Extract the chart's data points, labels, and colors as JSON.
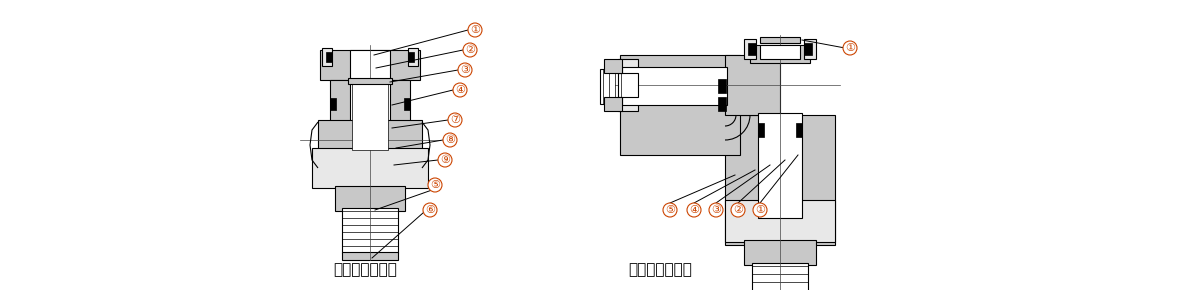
{
  "bg_color": "#ffffff",
  "line_color": "#000000",
  "gray_fill": "#c8c8c8",
  "light_gray": "#e8e8e8",
  "dark_gray": "#505050",
  "callout_color": "#cc4400",
  "label1": "ハーフユニオン",
  "label2": "エルボユニオン",
  "label_fontsize": 11,
  "callout_fontsize": 9,
  "fig_width": 11.98,
  "fig_height": 2.9
}
